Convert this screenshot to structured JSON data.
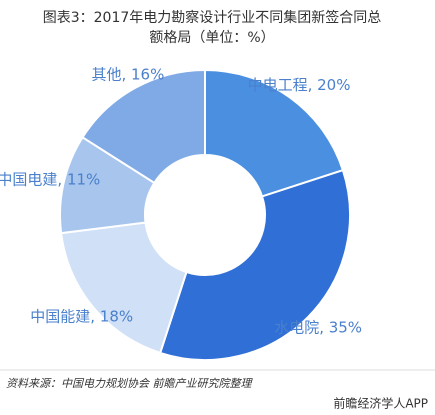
{
  "chart_data": {
    "type": "donut",
    "title": [
      "图表3：2017年电力勘察设计行业不同集团新签合同总",
      "额格局（单位：%）"
    ],
    "categories": [
      "中电工程",
      "水电院",
      "中国能建",
      "中国电建",
      "其他"
    ],
    "values": [
      20,
      35,
      18,
      11,
      16
    ],
    "value_labels": [
      "中电工程, 20%",
      "水电院, 35%",
      "中国能建, 18%",
      "中国电建, 11%",
      "其他, 16%"
    ],
    "colors": [
      "#4b8fe0",
      "#2f6fd6",
      "#cfe0f7",
      "#a8c5ee",
      "#80aae6"
    ],
    "source": "资料来源：中国电力规划协会 前瞻产业研究院整理",
    "watermark": "前瞻经济学人APP"
  }
}
